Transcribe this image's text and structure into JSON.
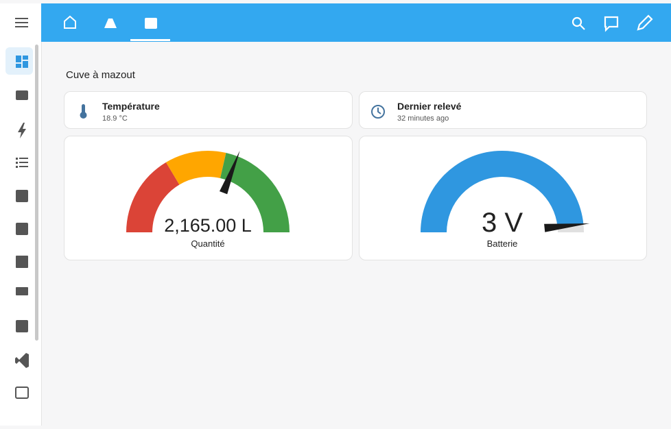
{
  "section_title": "Cuve à mazout",
  "entities": [
    {
      "name": "Température",
      "state": "18.9 °C"
    },
    {
      "name": "Dernier relevé",
      "state": "32 minutes ago"
    }
  ],
  "gauges": [
    {
      "name": "Quantité",
      "value": 2165,
      "value_label": "2,165.00 L",
      "range": [
        0,
        3500
      ],
      "segments": [
        {
          "from": 0,
          "color": "#db4437"
        },
        {
          "from": 1150,
          "color": "#ffa600"
        },
        {
          "from": 2000,
          "color": "#43a047"
        }
      ]
    },
    {
      "name": "Batterie",
      "value": 3,
      "value_label": "3 V",
      "range": [
        0,
        3.1
      ],
      "color": "#2f97e0"
    }
  ]
}
